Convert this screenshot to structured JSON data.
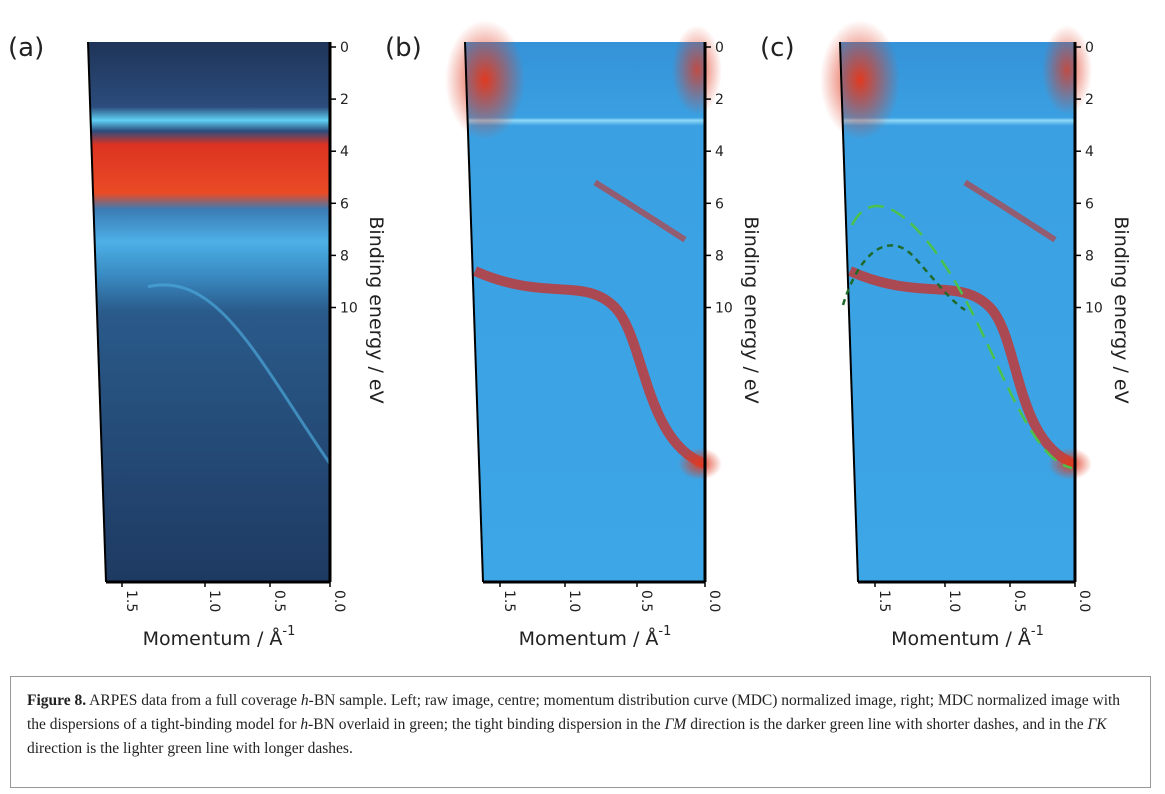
{
  "panels": [
    {
      "label": "(a)"
    },
    {
      "label": "(b)"
    },
    {
      "label": "(c)"
    }
  ],
  "y_axis": {
    "ticks": [
      "0",
      "2",
      "4",
      "6",
      "8",
      "10"
    ],
    "title": "Binding energy / eV"
  },
  "x_axis": {
    "ticks": [
      "1.5",
      "1.0",
      "0.5",
      "0.0"
    ],
    "title": "Momentum / Å",
    "title_sup": "-1"
  },
  "caption": {
    "label": "Figure 8.",
    "runs": [
      {
        "text": " ARPES data from a full coverage "
      },
      {
        "text": "h",
        "italic": true
      },
      {
        "text": "-BN sample. Left; raw image, centre; momentum distribution curve (MDC) normalized image, right; MDC normalized image with the dispersions of a tight-binding model for "
      },
      {
        "text": "h",
        "italic": true
      },
      {
        "text": "-BN overlaid in green; the tight binding dispersion in the "
      },
      {
        "text": "ΓM",
        "italic": true
      },
      {
        "text": " direction is the darker green line with shorter dashes, and in the "
      },
      {
        "text": "ΓK",
        "italic": true
      },
      {
        "text": " direction is the lighter green line with longer dashes."
      }
    ]
  }
}
